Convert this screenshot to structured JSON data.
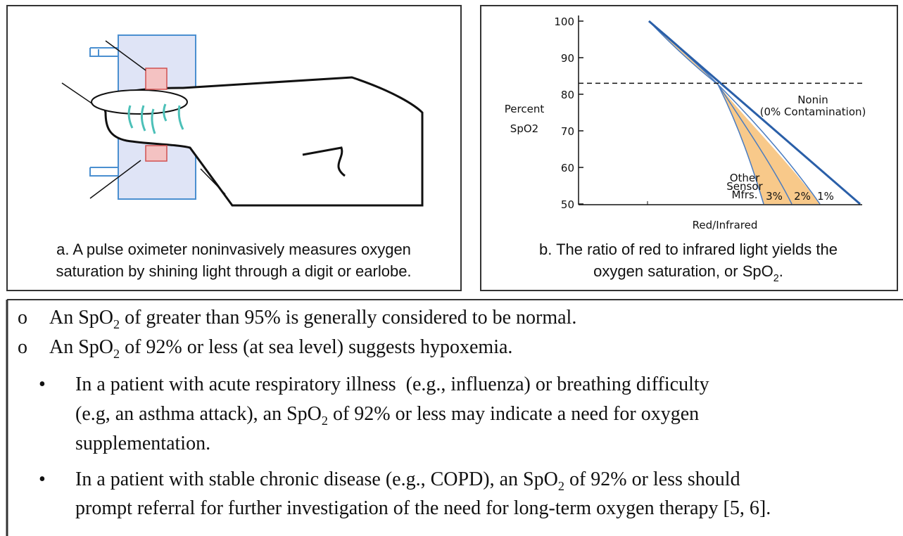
{
  "panel_a": {
    "caption": [
      "a. A pulse oximeter noninvasively measures oxygen",
      "saturation by shining light through a digit or earlobe."
    ]
  },
  "panel_b": {
    "chart_data": {
      "type": "line",
      "ylabel": [
        "Percent",
        "SpO2"
      ],
      "xlabel": "Red/Infrared",
      "ylim": [
        50,
        100
      ],
      "yticks": [
        50,
        60,
        70,
        80,
        90,
        100
      ],
      "reference_line": 83,
      "annotations": {
        "nonin": [
          "Nonin",
          "(0% Contamination)"
        ],
        "other": [
          "Other",
          "Sensor",
          "Mfrs."
        ],
        "curves": [
          "3%",
          "2%",
          "1%"
        ]
      }
    },
    "caption": [
      [
        {
          "text": "b. The ratio of red to infrared light yields the"
        }
      ],
      [
        {
          "text": "oxygen saturation, or SpO"
        },
        {
          "text": "2",
          "subscript": true
        },
        {
          "text": "."
        }
      ]
    ]
  },
  "notes": {
    "items": [
      {
        "marker": "o",
        "lines": [
          [
            {
              "text": "An SpO"
            },
            {
              "text": "2",
              "subscript": true
            },
            {
              "text": " of greater than 95% is generally considered to be normal."
            }
          ]
        ]
      },
      {
        "marker": "o",
        "lines": [
          [
            {
              "text": "An SpO"
            },
            {
              "text": "2",
              "subscript": true
            },
            {
              "text": " of 92% or less (at sea level) suggests hypoxemia."
            }
          ]
        ]
      },
      {
        "marker": "•",
        "lines": [
          [
            {
              "text": "In a patient with acute respiratory illness  (e.g., influenza) or breathing difficulty"
            }
          ],
          [
            {
              "text": "(e.g, an asthma attack), an SpO"
            },
            {
              "text": "2",
              "subscript": true
            },
            {
              "text": " of 92% or less may indicate a need for oxygen"
            }
          ],
          [
            {
              "text": "supplementation."
            }
          ]
        ]
      },
      {
        "marker": "•",
        "lines": [
          [
            {
              "text": "In a patient with stable chronic disease (e.g., COPD), an SpO"
            },
            {
              "text": "2",
              "subscript": true
            },
            {
              "text": " of 92% or less should"
            }
          ],
          [
            {
              "text": "prompt referral for further investigation of the need for long-term oxygen therapy [5, 6]."
            }
          ]
        ]
      }
    ]
  }
}
